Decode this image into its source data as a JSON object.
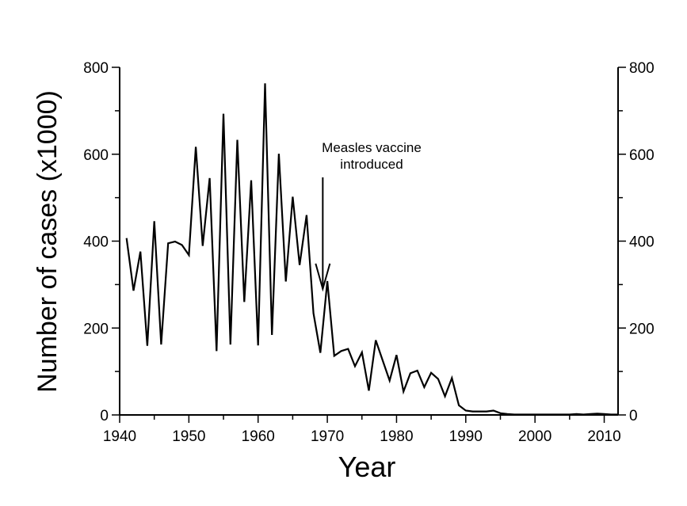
{
  "chart_data": {
    "type": "line",
    "title": "",
    "xlabel": "Year",
    "ylabel": "Number of cases (x1000)",
    "xlim": [
      1940,
      2012
    ],
    "ylim": [
      0,
      800
    ],
    "x_ticks": [
      1940,
      1950,
      1960,
      1970,
      1980,
      1990,
      2000,
      2010
    ],
    "y_ticks": [
      0,
      200,
      400,
      600,
      800
    ],
    "grid": false,
    "legend": "none",
    "series": [
      {
        "color": "#000000",
        "x": [
          1941,
          1942,
          1943,
          1944,
          1945,
          1946,
          1947,
          1948,
          1949,
          1950,
          1951,
          1952,
          1953,
          1954,
          1955,
          1956,
          1957,
          1958,
          1959,
          1960,
          1961,
          1962,
          1963,
          1964,
          1965,
          1966,
          1967,
          1968,
          1969,
          1970,
          1971,
          1972,
          1973,
          1974,
          1975,
          1976,
          1977,
          1978,
          1979,
          1980,
          1981,
          1982,
          1983,
          1984,
          1985,
          1986,
          1987,
          1988,
          1989,
          1990,
          1991,
          1992,
          1993,
          1994,
          1995,
          1996,
          1997,
          1998,
          1999,
          2000,
          2001,
          2002,
          2003,
          2004,
          2005,
          2006,
          2007,
          2008,
          2009,
          2010,
          2011,
          2012
        ],
        "values": [
          407,
          286,
          376,
          159,
          446,
          162,
          395,
          399,
          391,
          368,
          617,
          389,
          545,
          147,
          693,
          162,
          633,
          260,
          540,
          160,
          763,
          184,
          601,
          307,
          502,
          345,
          460,
          234,
          143,
          308,
          136,
          147,
          152,
          112,
          144,
          56,
          172,
          125,
          79,
          138,
          54,
          96,
          102,
          64,
          97,
          83,
          43,
          85,
          22,
          10,
          8,
          8,
          8,
          10,
          4,
          2,
          1,
          1,
          1,
          1,
          1,
          1,
          1,
          1,
          1,
          2,
          1,
          2,
          3,
          2,
          1,
          1
        ]
      }
    ],
    "annotations": [
      {
        "text_lines": [
          "Measles vaccine",
          "introduced"
        ],
        "points_to_year": 1969,
        "arrow_tip_value": 290
      }
    ]
  }
}
